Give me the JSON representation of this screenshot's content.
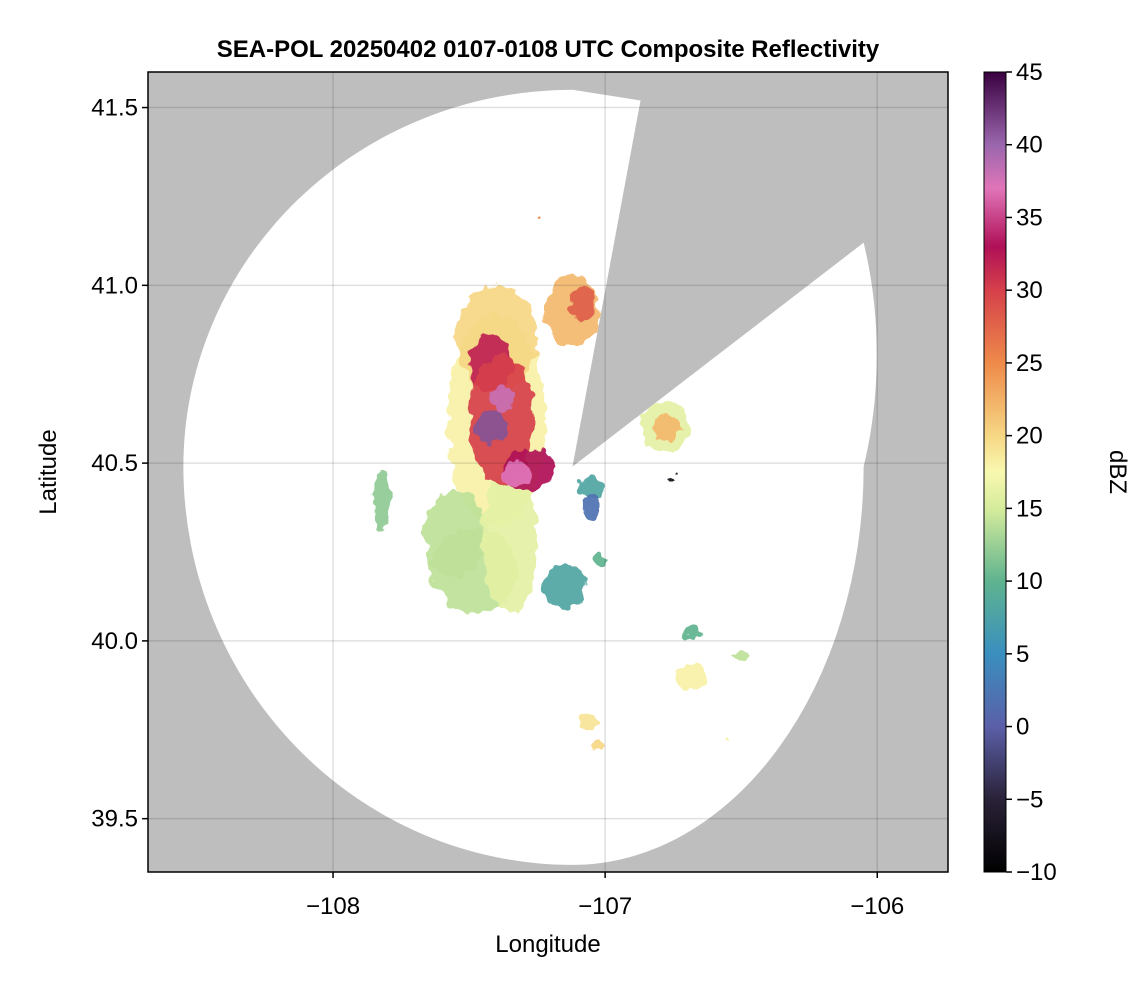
{
  "chart_data": {
    "type": "heatmap",
    "title": "SEA-POL 20250402 0107-0108 UTC Composite Reflectivity",
    "xlabel": "Longitude",
    "ylabel": "Latitude",
    "xlim": [
      -108.68,
      -105.74
    ],
    "ylim": [
      39.35,
      41.6
    ],
    "xticks": [
      -108,
      -107,
      -106
    ],
    "xtick_labels": [
      "−108",
      "−107",
      "−106"
    ],
    "yticks": [
      39.5,
      40.0,
      40.5,
      41.0,
      41.5
    ],
    "ytick_labels": [
      "39.5",
      "40.0",
      "40.5",
      "41.0",
      "41.5"
    ],
    "grid": true,
    "background_color": "#bebebe",
    "radar": {
      "center": [
        -107.12,
        40.49
      ],
      "range_edge_points": [
        [
          -107.12,
          41.55
        ],
        [
          -106.05,
          40.49
        ],
        [
          -107.12,
          39.37
        ],
        [
          -108.55,
          40.49
        ]
      ],
      "blocked_sectors": [
        {
          "from": [
            -106.87,
            41.52
          ],
          "to": [
            -106.05,
            41.12
          ]
        }
      ]
    },
    "colorbar": {
      "label": "dBZ",
      "range": [
        -10,
        45
      ],
      "ticks": [
        -10,
        -5,
        0,
        5,
        10,
        15,
        20,
        25,
        30,
        35,
        40,
        45
      ],
      "tick_labels": [
        "−10",
        "−5",
        "0",
        "5",
        "10",
        "15",
        "20",
        "25",
        "30",
        "35",
        "40",
        "45"
      ],
      "colormap": "spectral-reversed",
      "color_stops": [
        {
          "value": -10,
          "color": "#000000"
        },
        {
          "value": -5,
          "color": "#2a2238"
        },
        {
          "value": 0,
          "color": "#5b5fa8"
        },
        {
          "value": 5,
          "color": "#3a8fbf"
        },
        {
          "value": 10,
          "color": "#5fb38f"
        },
        {
          "value": 15,
          "color": "#d6ec9c"
        },
        {
          "value": 17.5,
          "color": "#f8f8b0"
        },
        {
          "value": 20,
          "color": "#f6d784"
        },
        {
          "value": 25,
          "color": "#ee8a4a"
        },
        {
          "value": 30,
          "color": "#d6404a"
        },
        {
          "value": 33,
          "color": "#b01057"
        },
        {
          "value": 37,
          "color": "#e075b8"
        },
        {
          "value": 40,
          "color": "#9a66ad"
        },
        {
          "value": 45,
          "color": "#3a0140"
        }
      ]
    },
    "echo_regions": [
      {
        "name": "main-cell",
        "center": [
          -107.4,
          40.62
        ],
        "radius": [
          0.18,
          0.3
        ],
        "dbz": 18
      },
      {
        "name": "main-cell-north",
        "center": [
          -107.4,
          40.85
        ],
        "radius": [
          0.15,
          0.15
        ],
        "dbz": 20
      },
      {
        "name": "main-cell-south-west",
        "center": [
          -107.55,
          40.3
        ],
        "radius": [
          0.12,
          0.12
        ],
        "dbz": 14
      },
      {
        "name": "main-cell-south-plume",
        "center": [
          -107.48,
          40.2
        ],
        "radius": [
          0.16,
          0.12
        ],
        "dbz": 14
      },
      {
        "name": "main-cell-south",
        "center": [
          -107.35,
          40.28
        ],
        "radius": [
          0.1,
          0.2
        ],
        "dbz": 16
      },
      {
        "name": "main-cell-core-north",
        "center": [
          -107.42,
          40.78
        ],
        "radius": [
          0.08,
          0.08
        ],
        "dbz": 32
      },
      {
        "name": "main-cell-core",
        "center": [
          -107.38,
          40.62
        ],
        "radius": [
          0.12,
          0.18
        ],
        "dbz": 30
      },
      {
        "name": "main-cell-core-south",
        "center": [
          -107.28,
          40.48
        ],
        "radius": [
          0.1,
          0.06
        ],
        "dbz": 33
      },
      {
        "name": "main-cell-peak-1",
        "center": [
          -107.42,
          40.6
        ],
        "radius": [
          0.06,
          0.05
        ],
        "dbz": 41
      },
      {
        "name": "main-cell-peak-2",
        "center": [
          -107.33,
          40.47
        ],
        "radius": [
          0.05,
          0.035
        ],
        "dbz": 37
      },
      {
        "name": "main-cell-peak-3",
        "center": [
          -107.38,
          40.68
        ],
        "radius": [
          0.04,
          0.04
        ],
        "dbz": 38
      },
      {
        "name": "northern-cell",
        "center": [
          -107.12,
          40.93
        ],
        "radius": [
          0.1,
          0.1
        ],
        "dbz": 22
      },
      {
        "name": "northern-cell-core",
        "center": [
          -107.08,
          40.95
        ],
        "radius": [
          0.05,
          0.05
        ],
        "dbz": 28
      },
      {
        "name": "western-band",
        "center": [
          -107.82,
          40.4
        ],
        "radius": [
          0.03,
          0.09
        ],
        "dbz": 12
      },
      {
        "name": "eastern-cell",
        "center": [
          -106.78,
          40.6
        ],
        "radius": [
          0.09,
          0.07
        ],
        "dbz": 16
      },
      {
        "name": "eastern-cell-core",
        "center": [
          -106.77,
          40.6
        ],
        "radius": [
          0.05,
          0.04
        ],
        "dbz": 22
      },
      {
        "name": "central-weak-echo",
        "center": [
          -107.05,
          40.43
        ],
        "radius": [
          0.05,
          0.03
        ],
        "dbz": 8
      },
      {
        "name": "small-echo-1",
        "center": [
          -107.05,
          40.38
        ],
        "radius": [
          0.03,
          0.03
        ],
        "dbz": 2
      },
      {
        "name": "south-echo-1",
        "center": [
          -107.15,
          40.15
        ],
        "radius": [
          0.08,
          0.06
        ],
        "dbz": 8
      },
      {
        "name": "south-echo-2",
        "center": [
          -107.02,
          40.23
        ],
        "radius": [
          0.03,
          0.02
        ],
        "dbz": 10
      },
      {
        "name": "south-echo-3",
        "center": [
          -106.68,
          40.02
        ],
        "radius": [
          0.03,
          0.02
        ],
        "dbz": 10
      },
      {
        "name": "southeast-cell",
        "center": [
          -106.68,
          39.9
        ],
        "radius": [
          0.06,
          0.04
        ],
        "dbz": 18
      },
      {
        "name": "southeast-echo",
        "center": [
          -106.5,
          39.96
        ],
        "radius": [
          0.03,
          0.01
        ],
        "dbz": 14
      },
      {
        "name": "southern-echo-1",
        "center": [
          -107.06,
          39.77
        ],
        "radius": [
          0.04,
          0.02
        ],
        "dbz": 19
      },
      {
        "name": "southern-echo-2",
        "center": [
          -107.03,
          39.71
        ],
        "radius": [
          0.02,
          0.015
        ],
        "dbz": 20
      },
      {
        "name": "eastern-small-echo",
        "center": [
          -106.55,
          39.72
        ],
        "radius": [
          0.01,
          0.008
        ],
        "dbz": 18
      },
      {
        "name": "isolated-speck-north",
        "center": [
          -107.25,
          41.19
        ],
        "radius": [
          0.006,
          0.006
        ],
        "dbz": 25
      },
      {
        "name": "isolated-speck-east",
        "center": [
          -106.75,
          40.46
        ],
        "radius": [
          0.008,
          0.008
        ],
        "dbz": -8
      }
    ]
  }
}
